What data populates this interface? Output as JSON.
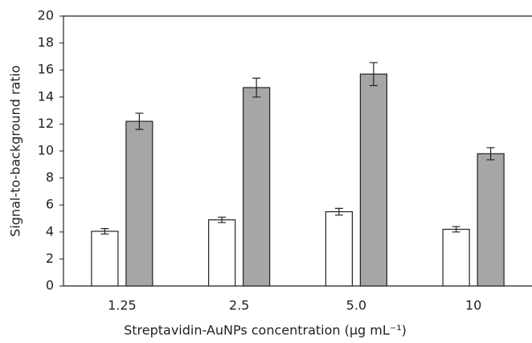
{
  "chart_data": {
    "type": "bar",
    "x_label": "Streptavidin-AuNPs concentration (μg mL⁻¹)",
    "y_label": "Signal-to-background ratio",
    "categories": [
      "1.25",
      "2.5",
      "5.0",
      "10"
    ],
    "series": [
      {
        "color": "#ffffff",
        "values": [
          4.05,
          4.9,
          5.5,
          4.2
        ],
        "errors": [
          0.2,
          0.2,
          0.25,
          0.2
        ]
      },
      {
        "color": "#a6a6a6",
        "values": [
          12.2,
          14.7,
          15.7,
          9.8
        ],
        "errors": [
          0.6,
          0.7,
          0.85,
          0.45
        ]
      }
    ],
    "ylim": [
      0,
      20
    ],
    "yticks": [
      0,
      2,
      4,
      6,
      8,
      10,
      12,
      14,
      16,
      18,
      20
    ],
    "grid": false
  }
}
